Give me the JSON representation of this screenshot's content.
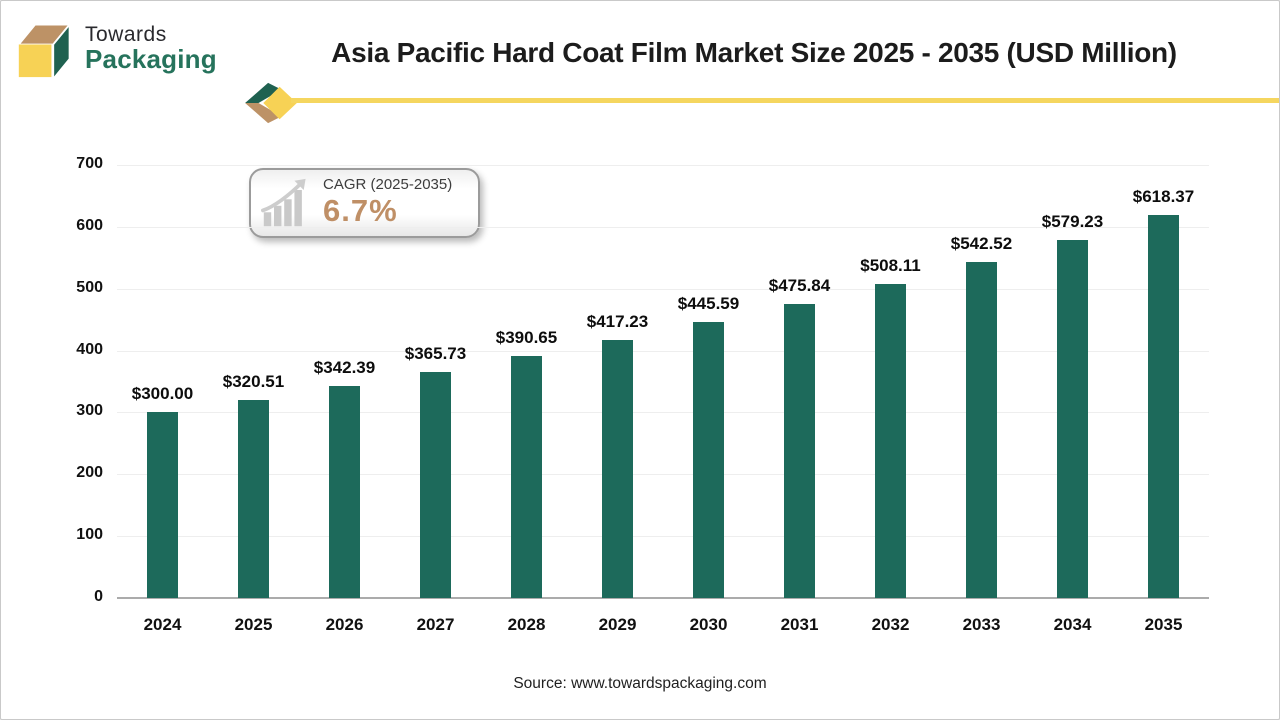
{
  "header": {
    "logo": {
      "line1": "Towards",
      "line2": "Packaging"
    },
    "title": "Asia Pacific Hard Coat Film Market Size 2025 - 2035 (USD Million)"
  },
  "cagr_badge": {
    "label": "CAGR (2025-2035)",
    "value": "6.7%",
    "icon": "bar-growth-icon",
    "value_color": "#bf8f66"
  },
  "chart_data": {
    "type": "bar",
    "title": "Asia Pacific Hard Coat Film Market Size 2025 - 2035 (USD Million)",
    "categories": [
      "2024",
      "2025",
      "2026",
      "2027",
      "2028",
      "2029",
      "2030",
      "2031",
      "2032",
      "2033",
      "2034",
      "2035"
    ],
    "values": [
      300.0,
      320.51,
      342.39,
      365.73,
      390.65,
      417.23,
      445.59,
      475.84,
      508.11,
      542.52,
      579.23,
      618.37
    ],
    "value_labels": [
      "$300.00",
      "$320.51",
      "$342.39",
      "$365.73",
      "$390.65",
      "$417.23",
      "$445.59",
      "$475.84",
      "$508.11",
      "$542.52",
      "$579.23",
      "$618.37"
    ],
    "xlabel": "",
    "ylabel": "",
    "ylim": [
      0,
      700
    ],
    "yticks": [
      0,
      100,
      200,
      300,
      400,
      500,
      600,
      700
    ],
    "grid": true,
    "legend": false,
    "bar_color": "#1d6a5b"
  },
  "footer": {
    "source": "Source: www.towardspackaging.com"
  },
  "colors": {
    "bar": "#1d6a5b",
    "accent_yellow": "#f5d65f",
    "accent_tan": "#bd9266",
    "brand_green": "#26735c",
    "title_text": "#1c1c1c",
    "grid": "#eeeeee",
    "axis": "#ababab"
  }
}
